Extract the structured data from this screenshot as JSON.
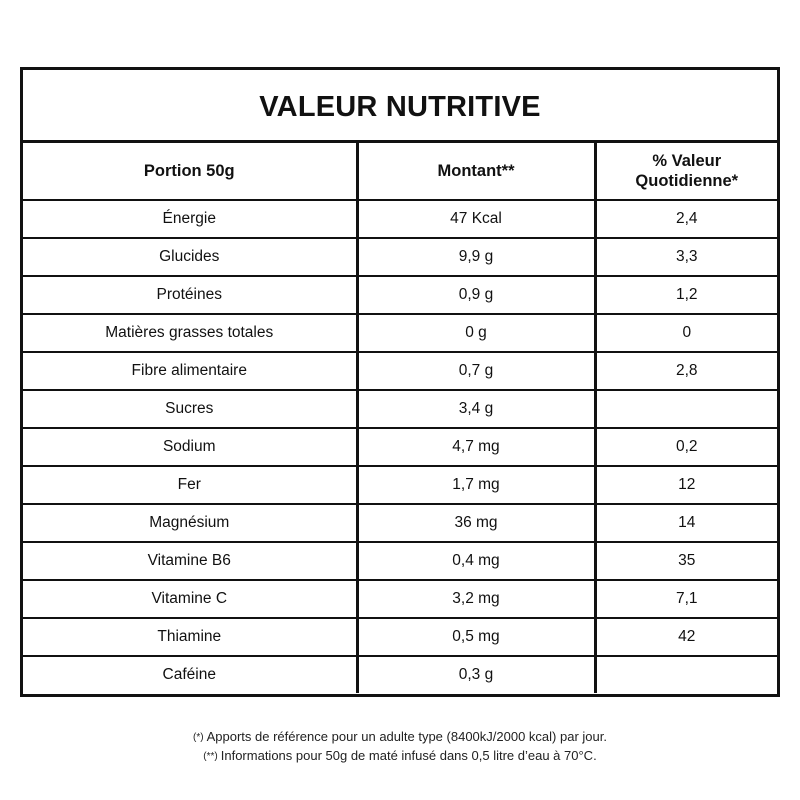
{
  "title": "VALEUR NUTRITIVE",
  "headers": {
    "portion": "Portion 50g",
    "amount": "Montant**",
    "daily_value_line1": "% Valeur",
    "daily_value_line2": "Quotidienne*"
  },
  "rows": [
    {
      "nutrient": "Énergie",
      "amount": "47 Kcal",
      "daily_value": "2,4"
    },
    {
      "nutrient": "Glucides",
      "amount": "9,9 g",
      "daily_value": "3,3"
    },
    {
      "nutrient": "Protéines",
      "amount": "0,9 g",
      "daily_value": "1,2"
    },
    {
      "nutrient": "Matières grasses totales",
      "amount": "0 g",
      "daily_value": "0"
    },
    {
      "nutrient": "Fibre alimentaire",
      "amount": "0,7 g",
      "daily_value": "2,8"
    },
    {
      "nutrient": "Sucres",
      "amount": "3,4 g",
      "daily_value": ""
    },
    {
      "nutrient": "Sodium",
      "amount": "4,7 mg",
      "daily_value": "0,2"
    },
    {
      "nutrient": "Fer",
      "amount": "1,7 mg",
      "daily_value": "12"
    },
    {
      "nutrient": "Magnésium",
      "amount": "36 mg",
      "daily_value": "14"
    },
    {
      "nutrient": "Vitamine B6",
      "amount": "0,4 mg",
      "daily_value": "35"
    },
    {
      "nutrient": "Vitamine C",
      "amount": "3,2 mg",
      "daily_value": "7,1"
    },
    {
      "nutrient": "Thiamine",
      "amount": "0,5 mg",
      "daily_value": "42"
    },
    {
      "nutrient": "Caféine",
      "amount": "0,3 g",
      "daily_value": ""
    }
  ],
  "footnotes": [
    {
      "mark": "(*)",
      "text": "Apports de référence pour un adulte type (8400kJ/2000 kcal) par jour."
    },
    {
      "mark": "(**)",
      "text": "Informations pour 50g de maté infusé dans 0,5 litre d’eau à 70°C."
    }
  ]
}
